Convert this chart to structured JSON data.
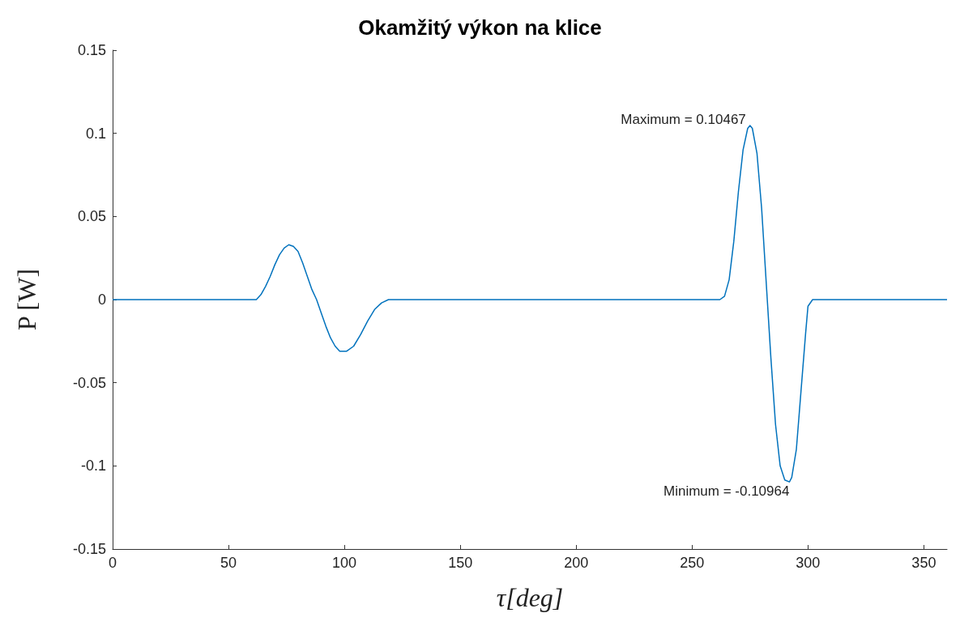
{
  "chart_data": {
    "type": "line",
    "title": "Okamžitý výkon na klice",
    "xlabel": "τ[deg]",
    "ylabel": "P [W]",
    "x": [
      0,
      60,
      62,
      64,
      66,
      68,
      70,
      72,
      74,
      76,
      78,
      80,
      82,
      84,
      86,
      88,
      90,
      92,
      94,
      96,
      98,
      101,
      104,
      107,
      110,
      113,
      116,
      119,
      262,
      264,
      266,
      268,
      270,
      272,
      274,
      275,
      276,
      278,
      280,
      282,
      284,
      286,
      288,
      290,
      292,
      293,
      295,
      297,
      299,
      300,
      302,
      360
    ],
    "series": [
      {
        "color": "#0072bd",
        "values": [
          0,
          0,
          0,
          0.003,
          0.008,
          0.014,
          0.021,
          0.027,
          0.031,
          0.033,
          0.032,
          0.029,
          0.022,
          0.014,
          0.006,
          0,
          -0.008,
          -0.016,
          -0.023,
          -0.028,
          -0.031,
          -0.031,
          -0.028,
          -0.021,
          -0.013,
          -0.006,
          -0.002,
          0,
          0,
          0.002,
          0.012,
          0.035,
          0.065,
          0.09,
          0.103,
          0.10467,
          0.103,
          0.088,
          0.055,
          0.01,
          -0.035,
          -0.075,
          -0.1,
          -0.1085,
          -0.10964,
          -0.107,
          -0.09,
          -0.055,
          -0.02,
          -0.004,
          0,
          0
        ]
      }
    ],
    "annotations": [
      {
        "text": "Maximum = 0.10467",
        "x": 275,
        "y": 0.10467
      },
      {
        "text": "Minimum = -0.10964",
        "x": 292,
        "y": -0.10964
      }
    ],
    "xlim": [
      0,
      360
    ],
    "xticks": [
      0,
      50,
      100,
      150,
      200,
      250,
      300,
      350
    ],
    "ylim": [
      -0.15,
      0.15
    ],
    "yticks": [
      -0.15,
      -0.1,
      -0.05,
      0,
      0.05,
      0.1,
      0.15
    ],
    "grid": false,
    "marker": "none",
    "line_style": "solid"
  }
}
